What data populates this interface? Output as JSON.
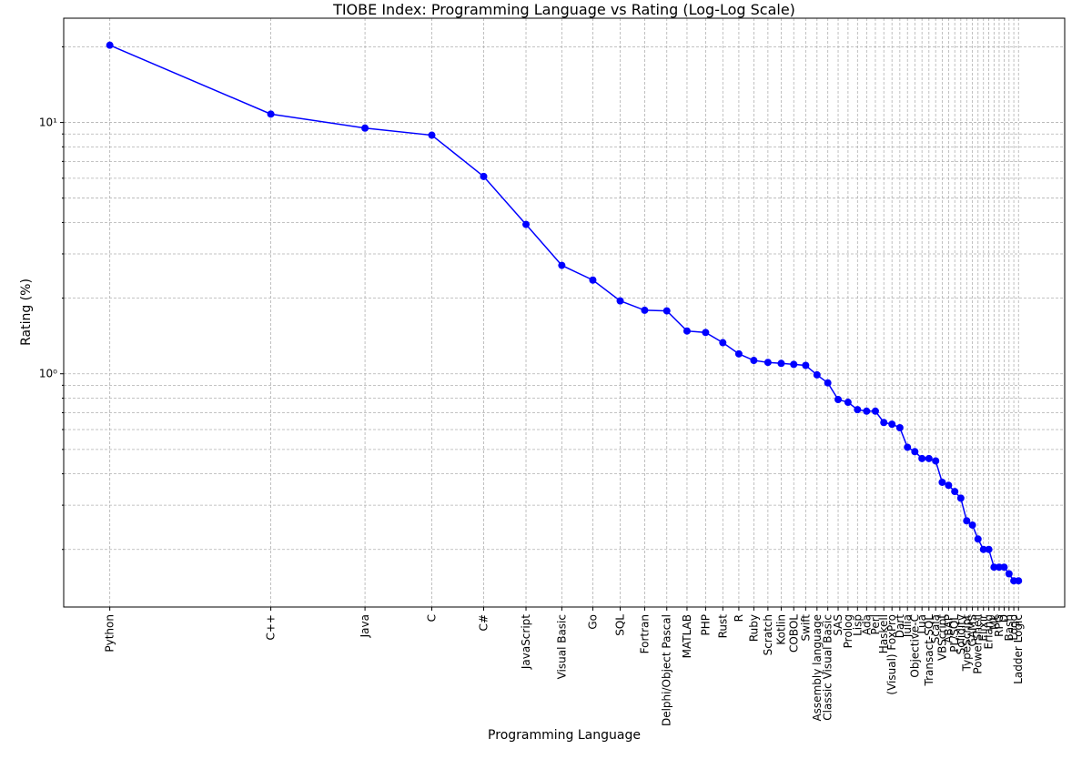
{
  "chart_data": {
    "type": "line",
    "title": "TIOBE Index: Programming Language vs Rating (Log-Log Scale)",
    "x_label": "Programming Language",
    "y_label": "Rating (%)",
    "categories": [
      "Python",
      "C++",
      "Java",
      "C",
      "C#",
      "JavaScript",
      "Visual Basic",
      "Go",
      "SQL",
      "Fortran",
      "Delphi/Object Pascal",
      "MATLAB",
      "PHP",
      "Rust",
      "R",
      "Ruby",
      "Scratch",
      "Kotlin",
      "COBOL",
      "Swift",
      "Assembly language",
      "Classic Visual Basic",
      "SAS",
      "Prolog",
      "Lisp",
      "Ada",
      "Perl",
      "Haskell",
      "(Visual) FoxPro",
      "Dart",
      "Julia",
      "Objective-C",
      "Lua",
      "Transact-SQL",
      "Scala",
      "VBScript",
      "ABAP",
      "PL/SQL",
      "Solidity",
      "TypeScript",
      "GAMS",
      "PowerShell",
      "Elixir",
      "Erlang",
      "ML",
      "RPG",
      "D",
      "Bash",
      "Logo",
      "Ladder Logic"
    ],
    "x": [
      1,
      2,
      3,
      4,
      5,
      6,
      7,
      8,
      9,
      10,
      11,
      12,
      13,
      14,
      15,
      16,
      17,
      18,
      19,
      20,
      21,
      22,
      23,
      24,
      25,
      26,
      27,
      28,
      29,
      30,
      31,
      32,
      33,
      34,
      35,
      36,
      37,
      38,
      39,
      40,
      41,
      42,
      43,
      44,
      45,
      46,
      47,
      48,
      49,
      50
    ],
    "series": [
      {
        "name": "Rating",
        "color": "#0000ff",
        "values": [
          20.3,
          10.8,
          9.5,
          8.9,
          6.1,
          3.93,
          2.7,
          2.36,
          1.95,
          1.79,
          1.78,
          1.48,
          1.46,
          1.33,
          1.2,
          1.13,
          1.11,
          1.1,
          1.09,
          1.08,
          0.99,
          0.92,
          0.79,
          0.77,
          0.72,
          0.71,
          0.71,
          0.64,
          0.63,
          0.61,
          0.51,
          0.49,
          0.46,
          0.46,
          0.45,
          0.37,
          0.36,
          0.34,
          0.32,
          0.26,
          0.25,
          0.22,
          0.2,
          0.2,
          0.17,
          0.17,
          0.17,
          0.16,
          0.15,
          0.15
        ]
      }
    ],
    "xscale": "log",
    "yscale": "log",
    "xlim": [
      0.82,
      61
    ],
    "ylim": [
      0.118,
      26
    ],
    "yticks": [
      {
        "value": 1,
        "label": "10⁰"
      },
      {
        "value": 10,
        "label": "10¹"
      }
    ],
    "yminorticks": [
      0.2,
      0.3,
      0.4,
      0.5,
      0.6,
      0.7,
      0.8,
      0.9,
      2,
      3,
      4,
      5,
      6,
      7,
      8,
      9,
      20
    ],
    "grid": true
  }
}
